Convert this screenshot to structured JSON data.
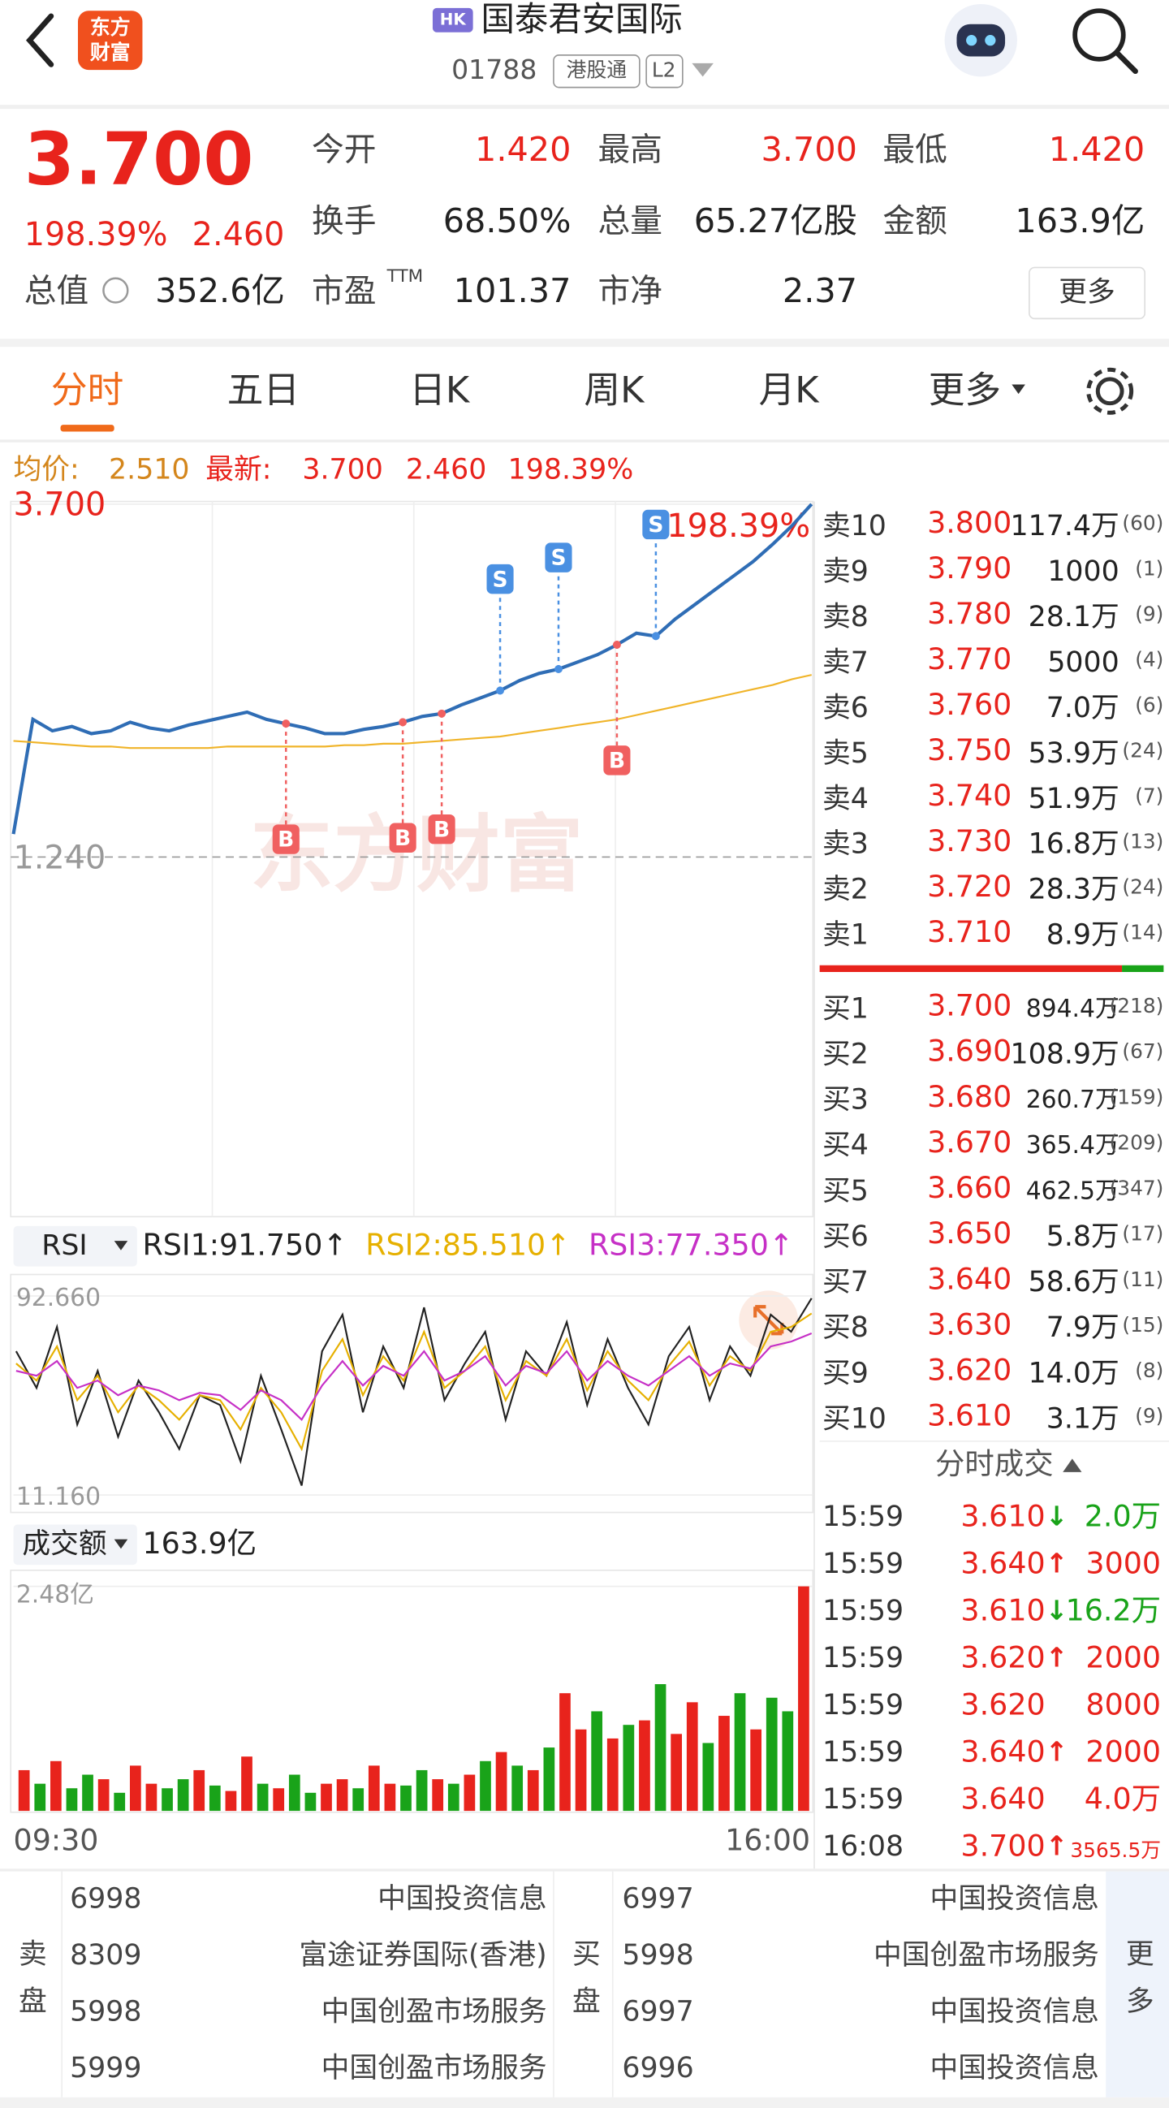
{
  "header": {
    "logo": [
      "东方",
      "财富"
    ],
    "market": "HK",
    "name": "国泰君安国际",
    "code": "01788",
    "tags": [
      "港股通",
      "L2"
    ]
  },
  "quote": {
    "price": "3.700",
    "change_pct": "198.39%",
    "change": "2.460",
    "fields": [
      {
        "label": "今开",
        "value": "1.420",
        "color": "#e8231c"
      },
      {
        "label": "最高",
        "value": "3.700",
        "color": "#e8231c"
      },
      {
        "label": "最低",
        "value": "1.420",
        "color": "#e8231c"
      },
      {
        "label": "换手",
        "value": "68.50%",
        "color": "#222222"
      },
      {
        "label": "总量",
        "value": "65.27亿股",
        "color": "#222222"
      },
      {
        "label": "金额",
        "value": "163.9亿",
        "color": "#222222"
      },
      {
        "label": "总值",
        "value": "352.6亿",
        "color": "#222222"
      },
      {
        "label": "市盈",
        "sup": "TTM",
        "value": "101.37",
        "color": "#222222"
      },
      {
        "label": "市净",
        "value": "2.37",
        "color": "#222222"
      }
    ],
    "more": "更多"
  },
  "tabs": [
    "分时",
    "五日",
    "日K",
    "周K",
    "月K",
    "更多"
  ],
  "info_bar": {
    "avg_label": "均价:",
    "avg": "2.510",
    "last_label": "最新:",
    "last": "3.700",
    "change": "2.460",
    "change_pct": "198.39%"
  },
  "chart_data": [
    {
      "type": "line",
      "ylim": [
        -1.22,
        3.7
      ],
      "yticks": [
        {
          "value": 3.7,
          "label": "3.700"
        },
        {
          "value": 1.24,
          "label": "1.240"
        }
      ],
      "right_label": "198.39%",
      "watermark": "东方财富",
      "series": [
        {
          "color": "#2f6db5",
          "values": [
            1.4,
            2.2,
            2.12,
            2.15,
            2.1,
            2.12,
            2.18,
            2.14,
            2.12,
            2.16,
            2.19,
            2.22,
            2.25,
            2.2,
            2.17,
            2.14,
            2.1,
            2.1,
            2.13,
            2.15,
            2.18,
            2.22,
            2.24,
            2.3,
            2.35,
            2.4,
            2.47,
            2.52,
            2.55,
            2.6,
            2.65,
            2.72,
            2.8,
            2.78,
            2.9,
            3.0,
            3.1,
            3.2,
            3.3,
            3.42,
            3.55,
            3.7
          ]
        },
        {
          "color": "#f0b429",
          "values": [
            2.05,
            2.04,
            2.03,
            2.02,
            2.01,
            2.01,
            2.0,
            2.0,
            2.0,
            2.0,
            2.0,
            2.01,
            2.01,
            2.01,
            2.01,
            2.01,
            2.01,
            2.02,
            2.02,
            2.03,
            2.03,
            2.04,
            2.05,
            2.06,
            2.07,
            2.08,
            2.1,
            2.12,
            2.14,
            2.16,
            2.18,
            2.2,
            2.23,
            2.26,
            2.29,
            2.32,
            2.35,
            2.38,
            2.41,
            2.44,
            2.48,
            2.51
          ]
        }
      ],
      "signals": [
        {
          "label": "B",
          "at": 14
        },
        {
          "label": "B",
          "at": 20
        },
        {
          "label": "B",
          "at": 22
        },
        {
          "label": "S",
          "at": 25
        },
        {
          "label": "S",
          "at": 28
        },
        {
          "label": "B",
          "at": 31
        },
        {
          "label": "S",
          "at": 33
        }
      ]
    },
    {
      "type": "line",
      "selector": "RSI",
      "ylim": [
        11.16,
        92.66
      ],
      "yticks": [
        {
          "value": 92.66,
          "label": "92.660"
        },
        {
          "value": 11.16,
          "label": "11.160"
        }
      ],
      "series": [
        {
          "name": "RSI1:91.750↑",
          "color": "#222222",
          "values": [
            70,
            55,
            80,
            40,
            62,
            35,
            58,
            45,
            30,
            52,
            48,
            25,
            60,
            38,
            15,
            70,
            85,
            45,
            72,
            55,
            88,
            50,
            65,
            78,
            42,
            70,
            60,
            82,
            48,
            75,
            55,
            40,
            68,
            80,
            50,
            72,
            60,
            85,
            78,
            91.75
          ]
        },
        {
          "name": "RSI2:85.510↑",
          "color": "#e6b000",
          "values": [
            65,
            58,
            72,
            50,
            60,
            45,
            56,
            50,
            42,
            52,
            50,
            38,
            55,
            45,
            30,
            62,
            75,
            52,
            68,
            58,
            78,
            55,
            62,
            72,
            50,
            66,
            60,
            75,
            54,
            70,
            58,
            50,
            64,
            74,
            56,
            68,
            62,
            78,
            80,
            85.51
          ]
        },
        {
          "name": "RSI3:77.350↑",
          "color": "#c630c6",
          "values": [
            62,
            60,
            66,
            55,
            58,
            52,
            56,
            54,
            50,
            53,
            52,
            46,
            54,
            50,
            42,
            56,
            66,
            56,
            64,
            60,
            70,
            58,
            62,
            68,
            56,
            64,
            61,
            70,
            58,
            66,
            60,
            56,
            62,
            68,
            60,
            65,
            63,
            72,
            74,
            77.35
          ]
        }
      ]
    },
    {
      "type": "bar",
      "selector": "成交额",
      "title": "163.9亿",
      "ylim": [
        0,
        2.48
      ],
      "yticks": [
        {
          "value": 2.48,
          "label": "2.48亿"
        }
      ],
      "categories": [
        "09:30",
        null,
        null,
        null,
        null,
        null,
        null,
        null,
        null,
        null,
        null,
        null,
        null,
        null,
        null,
        null,
        null,
        null,
        null,
        null,
        null,
        null,
        null,
        null,
        null,
        null,
        null,
        null,
        null,
        null,
        null,
        null,
        null,
        null,
        null,
        null,
        null,
        null,
        null,
        null,
        null,
        null,
        null,
        null,
        null,
        null,
        null,
        null,
        null,
        "16:00"
      ],
      "values": [
        0.45,
        0.3,
        0.55,
        0.25,
        0.4,
        0.35,
        0.2,
        0.5,
        0.3,
        0.25,
        0.35,
        0.45,
        0.28,
        0.22,
        0.6,
        0.3,
        0.25,
        0.4,
        0.2,
        0.3,
        0.35,
        0.25,
        0.5,
        0.3,
        0.28,
        0.45,
        0.35,
        0.3,
        0.4,
        0.55,
        0.65,
        0.5,
        0.45,
        0.7,
        1.3,
        0.9,
        1.1,
        0.8,
        0.95,
        1.0,
        1.4,
        0.85,
        1.2,
        0.75,
        1.05,
        1.3,
        0.9,
        1.25,
        1.1,
        2.48
      ],
      "colors": [
        "#e8231c",
        "#19a319",
        "#e8231c",
        "#19a319",
        "#19a319",
        "#e8231c",
        "#19a319",
        "#e8231c",
        "#e8231c",
        "#19a319",
        "#19a319",
        "#e8231c",
        "#19a319",
        "#e8231c",
        "#e8231c",
        "#19a319",
        "#e8231c",
        "#19a319",
        "#19a319",
        "#e8231c",
        "#e8231c",
        "#19a319",
        "#e8231c",
        "#e8231c",
        "#19a319",
        "#19a319",
        "#e8231c",
        "#19a319",
        "#e8231c",
        "#19a319",
        "#e8231c",
        "#19a319",
        "#e8231c",
        "#19a319",
        "#e8231c",
        "#e8231c",
        "#19a319",
        "#e8231c",
        "#19a319",
        "#e8231c",
        "#19a319",
        "#e8231c",
        "#e8231c",
        "#19a319",
        "#e8231c",
        "#19a319",
        "#e8231c",
        "#19a319",
        "#19a319",
        "#e8231c"
      ]
    }
  ],
  "order_book": {
    "asks": [
      {
        "label": "卖10",
        "price": "3.800",
        "volume": "117.4万",
        "count": "(60)"
      },
      {
        "label": "卖9",
        "price": "3.790",
        "volume": "1000",
        "count": "(1)"
      },
      {
        "label": "卖8",
        "price": "3.780",
        "volume": "28.1万",
        "count": "(9)"
      },
      {
        "label": "卖7",
        "price": "3.770",
        "volume": "5000",
        "count": "(4)"
      },
      {
        "label": "卖6",
        "price": "3.760",
        "volume": "7.0万",
        "count": "(6)"
      },
      {
        "label": "卖5",
        "price": "3.750",
        "volume": "53.9万",
        "count": "(24)"
      },
      {
        "label": "卖4",
        "price": "3.740",
        "volume": "51.9万",
        "count": "(7)"
      },
      {
        "label": "卖3",
        "price": "3.730",
        "volume": "16.8万",
        "count": "(13)"
      },
      {
        "label": "卖2",
        "price": "3.720",
        "volume": "28.3万",
        "count": "(24)"
      },
      {
        "label": "卖1",
        "price": "3.710",
        "volume": "8.9万",
        "count": "(14)"
      }
    ],
    "bids": [
      {
        "label": "买1",
        "price": "3.700",
        "volume": "894.4万",
        "count": "(218)"
      },
      {
        "label": "买2",
        "price": "3.690",
        "volume": "108.9万",
        "count": "(67)"
      },
      {
        "label": "买3",
        "price": "3.680",
        "volume": "260.7万",
        "count": "(159)"
      },
      {
        "label": "买4",
        "price": "3.670",
        "volume": "365.4万",
        "count": "(209)"
      },
      {
        "label": "买5",
        "price": "3.660",
        "volume": "462.5万",
        "count": "(347)"
      },
      {
        "label": "买6",
        "price": "3.650",
        "volume": "5.8万",
        "count": "(17)"
      },
      {
        "label": "买7",
        "price": "3.640",
        "volume": "58.6万",
        "count": "(11)"
      },
      {
        "label": "买8",
        "price": "3.630",
        "volume": "7.9万",
        "count": "(15)"
      },
      {
        "label": "买9",
        "price": "3.620",
        "volume": "14.0万",
        "count": "(8)"
      },
      {
        "label": "买10",
        "price": "3.610",
        "volume": "3.1万",
        "count": "(9)"
      }
    ]
  },
  "trades": {
    "title": "分时成交",
    "rows": [
      {
        "time": "15:59",
        "price": "3.610",
        "arrow": "↓",
        "volume": "2.0万",
        "color": "#19a319"
      },
      {
        "time": "15:59",
        "price": "3.640",
        "arrow": "↑",
        "volume": "3000",
        "color": "#e8231c"
      },
      {
        "time": "15:59",
        "price": "3.610",
        "arrow": "↓",
        "volume": "16.2万",
        "color": "#19a319"
      },
      {
        "time": "15:59",
        "price": "3.620",
        "arrow": "↑",
        "volume": "2000",
        "color": "#e8231c"
      },
      {
        "time": "15:59",
        "price": "3.620",
        "volume": "8000",
        "color": "#e8231c"
      },
      {
        "time": "15:59",
        "price": "3.640",
        "arrow": "↑",
        "volume": "2000",
        "color": "#e8231c"
      },
      {
        "time": "15:59",
        "price": "3.640",
        "volume": "4.0万",
        "color": "#e8231c"
      },
      {
        "time": "16:08",
        "price": "3.700",
        "arrow": "↑",
        "volume": "3565.5万",
        "color": "#e8231c"
      }
    ]
  },
  "brokers": {
    "sell_label": "卖盘",
    "buy_label": "买盘",
    "sell": [
      {
        "code": "6998",
        "name": "中国投资信息"
      },
      {
        "code": "8309",
        "name": "富途证券国际(香港)"
      },
      {
        "code": "5998",
        "name": "中国创盈市场服务"
      },
      {
        "code": "5999",
        "name": "中国创盈市场服务"
      }
    ],
    "buy": [
      {
        "code": "6997",
        "name": "中国投资信息"
      },
      {
        "code": "5998",
        "name": "中国创盈市场服务"
      },
      {
        "code": "6997",
        "name": "中国投资信息"
      },
      {
        "code": "6996",
        "name": "中国投资信息"
      }
    ],
    "more": "更多"
  }
}
